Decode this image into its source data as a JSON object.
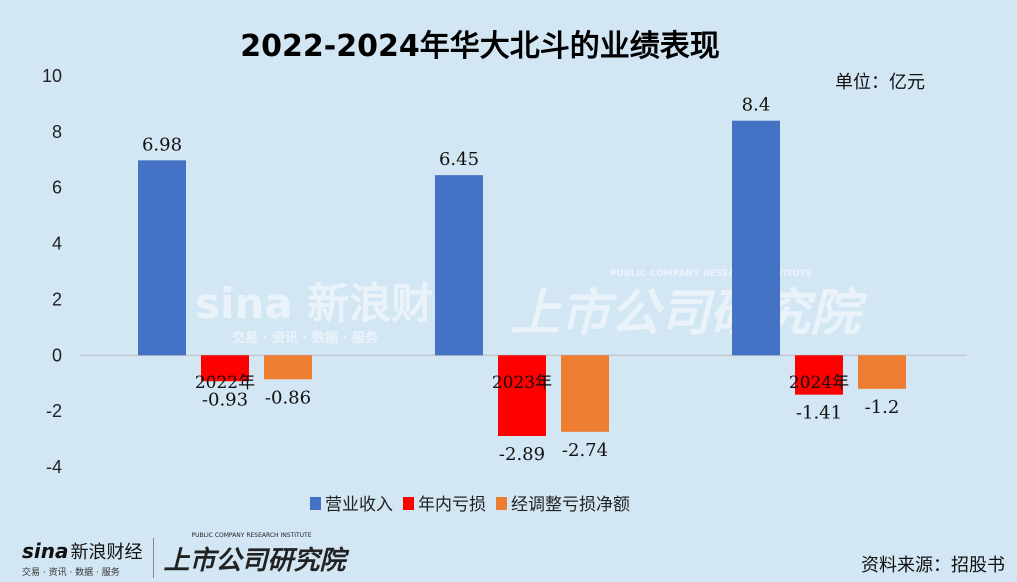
{
  "chart_data": {
    "type": "bar",
    "title": "2022-2024年华大北斗的业绩表现",
    "unit_label": "单位：亿元",
    "categories": [
      "2022年",
      "2023年",
      "2024年"
    ],
    "series": [
      {
        "name": "营业收入",
        "color": "#4472c4",
        "values": [
          6.98,
          6.45,
          8.4
        ],
        "labels": [
          "6.98",
          "6.45",
          "8.4"
        ]
      },
      {
        "name": "年内亏损",
        "color": "#ff0000",
        "values": [
          -0.93,
          -2.89,
          -1.41
        ],
        "labels": [
          "-0.93",
          "-2.89",
          "-1.41"
        ]
      },
      {
        "name": "经调整亏损净额",
        "color": "#ed7d31",
        "values": [
          -0.86,
          -2.74,
          -1.2
        ],
        "labels": [
          "-0.86",
          "-2.74",
          "-1.2"
        ]
      }
    ],
    "ylim": [
      -4,
      10
    ],
    "yticks": [
      -4,
      -2,
      0,
      2,
      4,
      6,
      8,
      10
    ],
    "grid": false,
    "legend": "bottom"
  },
  "watermark": {
    "brand": "sina 新浪财经",
    "tagline": "交易 · 资讯 · 数据 · 服务",
    "institute": "上市公司研究院",
    "institute_en": "PUBLIC COMPANY RESEARCH INSTITUTE"
  },
  "footer": {
    "logo_brand": "sina",
    "logo_cn": "新浪财经",
    "logo_tagline": "交易 · 资讯 · 数据 · 服务",
    "institute": "上市公司研究院",
    "institute_en": "PUBLIC COMPANY RESEARCH INSTITUTE",
    "source": "资料来源：招股书"
  }
}
